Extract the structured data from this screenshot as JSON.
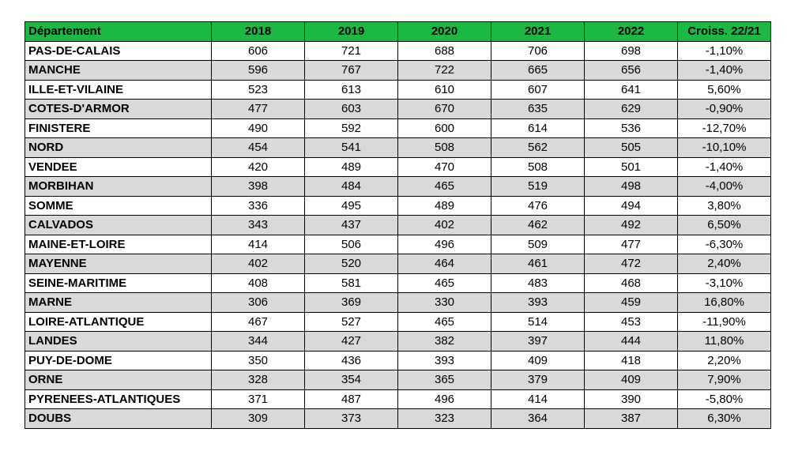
{
  "table": {
    "headers": [
      "Département",
      "2018",
      "2019",
      "2020",
      "2021",
      "2022",
      "Croiss. 22/21"
    ],
    "rows": [
      [
        "PAS-DE-CALAIS",
        "606",
        "721",
        "688",
        "706",
        "698",
        "-1,10%"
      ],
      [
        "MANCHE",
        "596",
        "767",
        "722",
        "665",
        "656",
        "-1,40%"
      ],
      [
        "ILLE-ET-VILAINE",
        "523",
        "613",
        "610",
        "607",
        "641",
        "5,60%"
      ],
      [
        "COTES-D'ARMOR",
        "477",
        "603",
        "670",
        "635",
        "629",
        "-0,90%"
      ],
      [
        "FINISTERE",
        "490",
        "592",
        "600",
        "614",
        "536",
        "-12,70%"
      ],
      [
        "NORD",
        "454",
        "541",
        "508",
        "562",
        "505",
        "-10,10%"
      ],
      [
        "VENDEE",
        "420",
        "489",
        "470",
        "508",
        "501",
        "-1,40%"
      ],
      [
        "MORBIHAN",
        "398",
        "484",
        "465",
        "519",
        "498",
        "-4,00%"
      ],
      [
        "SOMME",
        "336",
        "495",
        "489",
        "476",
        "494",
        "3,80%"
      ],
      [
        "CALVADOS",
        "343",
        "437",
        "402",
        "462",
        "492",
        "6,50%"
      ],
      [
        "MAINE-ET-LOIRE",
        "414",
        "506",
        "496",
        "509",
        "477",
        "-6,30%"
      ],
      [
        "MAYENNE",
        "402",
        "520",
        "464",
        "461",
        "472",
        "2,40%"
      ],
      [
        "SEINE-MARITIME",
        "408",
        "581",
        "465",
        "483",
        "468",
        "-3,10%"
      ],
      [
        "MARNE",
        "306",
        "369",
        "330",
        "393",
        "459",
        "16,80%"
      ],
      [
        "LOIRE-ATLANTIQUE",
        "467",
        "527",
        "465",
        "514",
        "453",
        "-11,90%"
      ],
      [
        "LANDES",
        "344",
        "427",
        "382",
        "397",
        "444",
        "11,80%"
      ],
      [
        "PUY-DE-DOME",
        "350",
        "436",
        "393",
        "409",
        "418",
        "2,20%"
      ],
      [
        "ORNE",
        "328",
        "354",
        "365",
        "379",
        "409",
        "7,90%"
      ],
      [
        "PYRENEES-ATLANTIQUES",
        "371",
        "487",
        "496",
        "414",
        "390",
        "-5,80%"
      ],
      [
        "DOUBS",
        "309",
        "373",
        "323",
        "364",
        "387",
        "6,30%"
      ]
    ]
  },
  "colors": {
    "header_bg": "#1bb843",
    "stripe_bg": "#d9d9d9"
  }
}
